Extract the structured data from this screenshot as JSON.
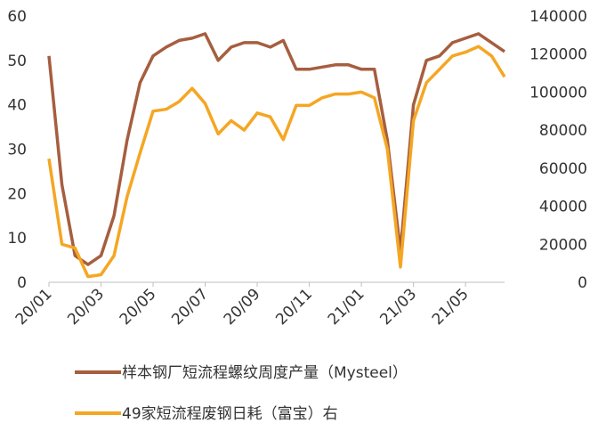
{
  "chart_data": {
    "type": "line",
    "categories": [
      "20/01",
      null,
      null,
      null,
      "20/03",
      null,
      null,
      null,
      "20/05",
      null,
      null,
      null,
      "20/07",
      null,
      null,
      null,
      "20/09",
      null,
      null,
      null,
      "20/11",
      null,
      null,
      null,
      "21/01",
      null,
      null,
      null,
      "21/03",
      null,
      null,
      null,
      "21/05",
      null,
      null,
      null
    ],
    "series": [
      {
        "name": "样本钢厂短流程螺纹周度产量（Mysteel）",
        "color": "#a65e3f",
        "values": [
          51,
          22,
          6,
          4,
          6,
          15,
          32,
          45,
          51,
          53,
          54.5,
          55,
          56,
          50,
          53,
          54,
          54,
          53,
          54.5,
          48,
          48,
          48.5,
          49,
          49,
          48,
          48,
          32,
          7,
          40,
          50,
          51,
          54,
          55,
          56,
          54,
          52
        ]
      },
      {
        "name": "49家短流程废钢日耗（富宝）右",
        "color": "#f5a623",
        "axis": "y2",
        "values": [
          65000,
          20000,
          18000,
          3000,
          4000,
          14000,
          45000,
          68000,
          90000,
          91000,
          95000,
          102000,
          94000,
          78000,
          85000,
          80000,
          89000,
          87000,
          75000,
          93000,
          93000,
          97000,
          99000,
          99000,
          100000,
          97000,
          70000,
          8000,
          85000,
          105000,
          112000,
          119000,
          121000,
          124000,
          119000,
          108000
        ]
      }
    ],
    "ylim": [
      0,
      60
    ],
    "yticks": [
      0,
      10,
      20,
      30,
      40,
      50,
      60
    ],
    "y2lim": [
      0,
      140000
    ],
    "y2ticks": [
      0,
      20000,
      40000,
      60000,
      80000,
      100000,
      120000,
      140000
    ]
  }
}
